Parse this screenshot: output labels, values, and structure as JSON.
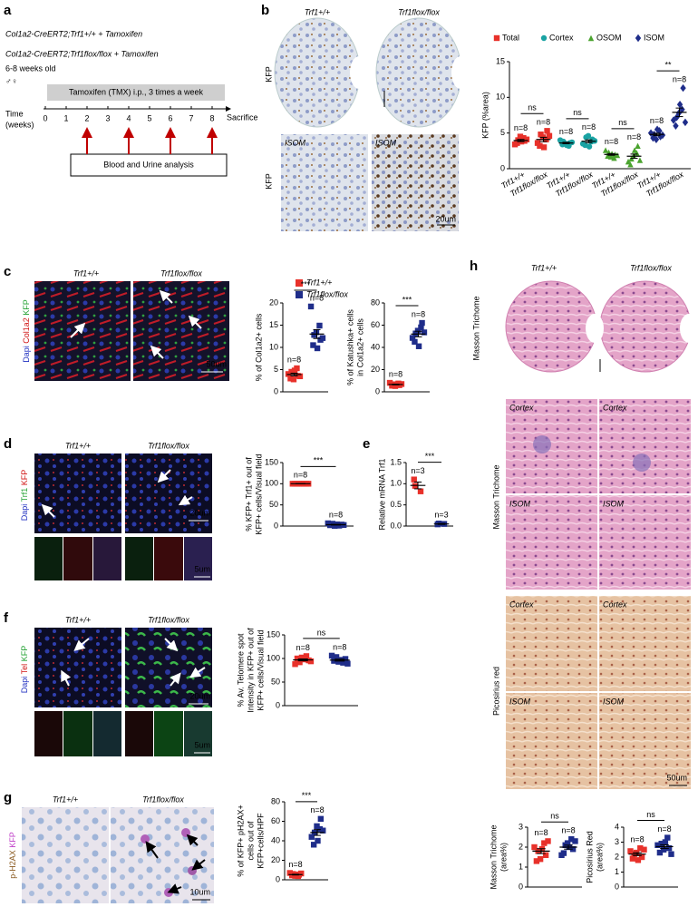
{
  "panels": {
    "a": {
      "label": "a",
      "line1": "Col1a2-CreERT2;Trf1+/+ + Tamoxifen",
      "line2": "Col1a2-CreERT2;Trf1flox/flox + Tamoxifen",
      "age": "6-8 weeks old",
      "sex": "♂♀",
      "time_label": [
        "Time",
        "(weeks)"
      ],
      "treatment": "Tamoxifen (TMX) i.p., 3 times a week",
      "weeks": [
        0,
        1,
        2,
        3,
        4,
        5,
        6,
        7,
        8
      ],
      "sacrifice": "Sacrifice",
      "analysis": "Blood and Urine analysis",
      "analysis_weeks": [
        2,
        4,
        6,
        8
      ]
    },
    "b": {
      "label": "b",
      "col1": "Trf1+/+",
      "col2": "Trf1flox/flox",
      "stains": [
        "KFP",
        "KFP"
      ],
      "regions": [
        "ISOM",
        "ISOM"
      ],
      "scale": "20um"
    },
    "c": {
      "label": "c",
      "col1": "Trf1+/+",
      "col2": "Trf1flox/flox",
      "stains": [
        "Dapi",
        "Col1a2",
        "KFP"
      ],
      "scale": "50um"
    },
    "d": {
      "label": "d",
      "col1": "Trf1+/+",
      "col2": "Trf1flox/flox",
      "stains": [
        "Dapi",
        "Trf1",
        "KFP"
      ],
      "scale": "20um",
      "small_scale": "5um"
    },
    "e": {
      "label": "e"
    },
    "f": {
      "label": "f",
      "col1": "Trf1+/+",
      "col2": "Trf1flox/flox",
      "stains": [
        "Dapi",
        "Tel",
        "KFP"
      ],
      "scale": "20um",
      "small_scale": "5um"
    },
    "g": {
      "label": "g",
      "col1": "Trf1+/+",
      "col2": "Trf1flox/flox",
      "stains": [
        "p-H2AX",
        "KFP"
      ],
      "scale": "10um"
    },
    "h": {
      "label": "h",
      "col1": "Trf1+/+",
      "col2": "Trf1flox/flox",
      "row_labels": [
        "Masson Trichome",
        "Masson Trichome",
        "Picosirius red"
      ],
      "regions": [
        "Cortex",
        "Cortex",
        "ISOM",
        "ISOM",
        "Cortex",
        "Cortex",
        "ISOM",
        "ISOM"
      ],
      "scale": "50um"
    }
  },
  "legend_c": [
    {
      "name": "Trf1+/+",
      "color": "#e8312a"
    },
    {
      "name": "Trf1flox/flox",
      "color": "#1f2d8a"
    }
  ],
  "chart_data": [
    {
      "type": "dotplot",
      "ylabel": [
        "KFP (%area)"
      ],
      "ylim": [
        0,
        15
      ],
      "yticks": [
        0,
        5,
        10,
        15
      ],
      "categories": [
        "Trf1+/+",
        "Trf1flox/flox",
        "Trf1+/+",
        "Trf1flox/flox",
        "Trf1+/+",
        "Trf1flox/flox",
        "Trf1+/+",
        "Trf1flox/flox"
      ],
      "legend": [
        {
          "name": "Total",
          "color": "#e8312a",
          "marker": "square"
        },
        {
          "name": "Cortex",
          "color": "#1aa3a3",
          "marker": "circle"
        },
        {
          "name": "OSOM",
          "color": "#4aa32e",
          "marker": "triangle"
        },
        {
          "name": "ISOM",
          "color": "#1f2d8a",
          "marker": "diamond"
        }
      ],
      "groups": [
        {
          "color": "#e8312a",
          "marker": "square",
          "values": [
            3.6,
            4.0,
            4.3,
            3.9,
            3.4,
            4.5,
            3.8,
            4.1
          ],
          "mean": 3.95,
          "error": 0.15,
          "n_label": "n=8"
        },
        {
          "color": "#e8312a",
          "marker": "square",
          "values": [
            3.2,
            4.8,
            4.1,
            5.3,
            3.6,
            4.4,
            3.0,
            4.6
          ],
          "mean": 4.1,
          "error": 0.3,
          "n_label": "n=8"
        },
        {
          "color": "#1aa3a3",
          "marker": "circle",
          "values": [
            3.4,
            3.8,
            3.2,
            3.6,
            4.0,
            3.5,
            3.3,
            3.7
          ],
          "mean": 3.6,
          "error": 0.1,
          "n_label": "n=8"
        },
        {
          "color": "#1aa3a3",
          "marker": "circle",
          "values": [
            3.3,
            4.4,
            3.8,
            4.1,
            3.5,
            4.6,
            3.1,
            3.9
          ],
          "mean": 3.85,
          "error": 0.2,
          "n_label": "n=8"
        },
        {
          "color": "#4aa32e",
          "marker": "triangle",
          "values": [
            1.8,
            2.3,
            1.5,
            2.0,
            2.6,
            1.7,
            2.1,
            1.9
          ],
          "mean": 2.0,
          "error": 0.12,
          "n_label": "n=8"
        },
        {
          "color": "#4aa32e",
          "marker": "triangle",
          "values": [
            0.6,
            1.4,
            2.2,
            3.2,
            1.0,
            1.8,
            2.6,
            1.2
          ],
          "mean": 1.75,
          "error": 0.3,
          "n_label": "n=8"
        },
        {
          "color": "#1f2d8a",
          "marker": "diamond",
          "values": [
            4.3,
            4.8,
            5.3,
            4.5,
            5.0,
            4.1,
            5.5,
            4.7
          ],
          "mean": 4.8,
          "error": 0.17,
          "n_label": "n=8"
        },
        {
          "color": "#1f2d8a",
          "marker": "diamond",
          "values": [
            6.0,
            7.2,
            8.3,
            11.3,
            6.8,
            7.8,
            9.0,
            6.5
          ],
          "mean": 7.9,
          "error": 0.6,
          "n_label": "n=8"
        }
      ],
      "significance": [
        "ns",
        "ns",
        "ns",
        "**"
      ]
    },
    {
      "type": "dotplot",
      "ylabel": [
        "% of Col1a2+ cells"
      ],
      "ylim": [
        0,
        20
      ],
      "yticks": [
        0,
        5,
        10,
        15,
        20
      ],
      "groups": [
        {
          "color": "#e8312a",
          "marker": "square",
          "values": [
            3.0,
            4.5,
            5.3,
            3.6,
            4.0,
            2.8,
            4.8,
            3.5
          ],
          "mean": 3.9,
          "error": 0.3,
          "n_label": "n=8"
        },
        {
          "color": "#1f2d8a",
          "marker": "square",
          "values": [
            10.5,
            12.8,
            14.9,
            11.7,
            19.2,
            13.4,
            9.8,
            12.1
          ],
          "mean": 13.0,
          "error": 1.0,
          "n_label": "n=8"
        }
      ],
      "significance": [
        "***"
      ]
    },
    {
      "type": "dotplot",
      "ylabel": [
        "% of Katushka+ cells",
        "in Col1a2+ cells"
      ],
      "ylim": [
        0,
        80
      ],
      "yticks": [
        0,
        20,
        40,
        60,
        80
      ],
      "groups": [
        {
          "color": "#e8312a",
          "marker": "square",
          "values": [
            5.5,
            6.8,
            7.5,
            6.0,
            8.1,
            5.2,
            6.5,
            7.0
          ],
          "mean": 6.6,
          "error": 0.35,
          "n_label": "n=8"
        },
        {
          "color": "#1f2d8a",
          "marker": "square",
          "values": [
            45.0,
            52.5,
            58.0,
            62.0,
            48.5,
            55.0,
            41.0,
            53.5
          ],
          "mean": 52,
          "error": 2.5,
          "n_label": "n=8"
        }
      ],
      "significance": [
        "***"
      ]
    },
    {
      "type": "dotplot",
      "ylabel": [
        "% KFP+ Trf1+ out of",
        "KFP+ cells/Visual field"
      ],
      "ylim": [
        0,
        150
      ],
      "yticks": [
        0,
        50,
        100,
        150
      ],
      "groups": [
        {
          "color": "#e8312a",
          "marker": "square",
          "values": [
            100,
            100,
            100,
            100,
            100,
            100,
            100,
            100
          ],
          "mean": 100,
          "error": 0,
          "n_label": "n=8"
        },
        {
          "color": "#1f2d8a",
          "marker": "square",
          "values": [
            2.0,
            5.5,
            1.0,
            3.5,
            6.5,
            0.5,
            4.0,
            2.5
          ],
          "mean": 3.2,
          "error": 0.8,
          "n_label": "n=8"
        }
      ],
      "significance": [
        "***"
      ]
    },
    {
      "type": "dotplot",
      "ylabel": [
        "Relative mRNA Trf1"
      ],
      "ylim": [
        0,
        1.5
      ],
      "yticks": [
        {
          "value": 0,
          "label": "0.0"
        },
        0.5,
        {
          "value": 1,
          "label": "1.0"
        },
        1.5
      ],
      "groups": [
        {
          "color": "#e8312a",
          "marker": "square",
          "values": [
            1.1,
            0.95,
            0.82
          ],
          "mean": 0.96,
          "error": 0.08,
          "n_label": "n=3"
        },
        {
          "color": "#1f2d8a",
          "marker": "square",
          "values": [
            0.04,
            0.06,
            0.05
          ],
          "mean": 0.05,
          "error": 0.01,
          "n_label": "n=3"
        }
      ],
      "significance": [
        "***"
      ]
    },
    {
      "type": "dotplot",
      "ylabel": [
        "% Av. Telomere spot",
        "Intensity in KFP+ out of",
        "KFP+ cells/Visual field"
      ],
      "ylim": [
        0,
        150
      ],
      "yticks": [
        0,
        50,
        100,
        150
      ],
      "groups": [
        {
          "color": "#e8312a",
          "marker": "square",
          "values": [
            100,
            92,
            105,
            96,
            88,
            102,
            98,
            94
          ],
          "mean": 97,
          "error": 2,
          "n_label": "n=8"
        },
        {
          "color": "#1f2d8a",
          "marker": "square",
          "values": [
            95,
            103,
            91,
            99,
            106,
            93,
            97,
            89
          ],
          "mean": 96.5,
          "error": 2,
          "n_label": "n=8"
        }
      ],
      "significance": [
        "ns"
      ]
    },
    {
      "type": "dotplot",
      "ylabel": [
        "% of  KFP+ pH2AX+",
        "cells out of",
        "KFP+cells/HPF"
      ],
      "ylim": [
        0,
        80
      ],
      "yticks": [
        0,
        20,
        40,
        60,
        80
      ],
      "groups": [
        {
          "color": "#e8312a",
          "marker": "square",
          "values": [
            4.5,
            6.0,
            3.8,
            5.2,
            7.0,
            4.0,
            5.5,
            6.5
          ],
          "mean": 5.3,
          "error": 0.4,
          "n_label": "n=8"
        },
        {
          "color": "#1f2d8a",
          "marker": "square",
          "values": [
            36.0,
            48.5,
            52.0,
            62.5,
            44.0,
            55.0,
            40.0,
            50.5
          ],
          "mean": 48.5,
          "error": 3,
          "n_label": "n=8"
        }
      ],
      "significance": [
        "***"
      ]
    },
    {
      "type": "dotplot",
      "ylabel": [
        "Masson Trichome",
        "(area%)"
      ],
      "ylim": [
        0,
        3
      ],
      "yticks": [
        0,
        1,
        2,
        3
      ],
      "groups": [
        {
          "color": "#e8312a",
          "marker": "square",
          "values": [
            1.3,
            1.8,
            2.2,
            1.6,
            2.0,
            1.4,
            1.9,
            2.3
          ],
          "mean": 1.8,
          "error": 0.12,
          "n_label": "n=8"
        },
        {
          "color": "#1f2d8a",
          "marker": "square",
          "values": [
            1.7,
            2.1,
            2.4,
            1.9,
            1.6,
            2.2,
            2.0,
            2.3
          ],
          "mean": 2.0,
          "error": 0.1,
          "n_label": "n=8"
        }
      ],
      "significance": [
        "ns"
      ]
    },
    {
      "type": "dotplot",
      "ylabel": [
        "Picosirius Red",
        "(area%)"
      ],
      "ylim": [
        0,
        4
      ],
      "yticks": [
        0,
        1,
        2,
        3,
        4
      ],
      "groups": [
        {
          "color": "#e8312a",
          "marker": "square",
          "values": [
            1.9,
            2.2,
            2.6,
            2.0,
            2.4,
            2.3,
            1.8,
            2.5
          ],
          "mean": 2.2,
          "error": 0.1,
          "n_label": "n=8"
        },
        {
          "color": "#1f2d8a",
          "marker": "square",
          "values": [
            2.3,
            2.9,
            3.3,
            2.6,
            2.8,
            2.5,
            3.0,
            2.2
          ],
          "mean": 2.7,
          "error": 0.12,
          "n_label": "n=8"
        }
      ],
      "significance": [
        "ns"
      ]
    }
  ]
}
